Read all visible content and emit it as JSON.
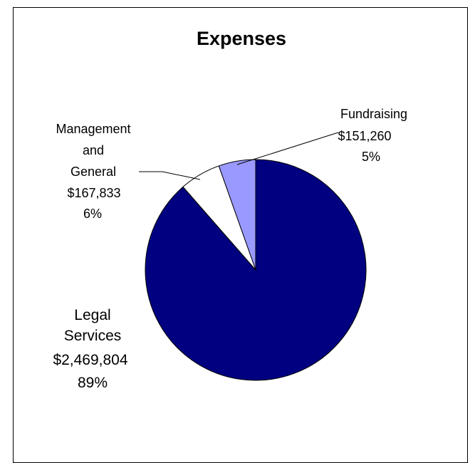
{
  "chart_data": {
    "type": "pie",
    "title": "Expenses",
    "slices": [
      {
        "name": "Fundraising",
        "value": 151260,
        "value_label": "$151,260",
        "percent_label": "5%",
        "color": "#9999ff"
      },
      {
        "name": "Management and General",
        "value": 167833,
        "value_label": "$167,833",
        "percent_label": "6%",
        "color": "#ffffff"
      },
      {
        "name": "Legal Services",
        "value": 2469804,
        "value_label": "$2,469,804",
        "percent_label": "89%",
        "color": "#000080"
      }
    ],
    "start_angle": "12 o'clock",
    "direction": "counterclockwise",
    "legend": "none",
    "grid": false
  }
}
